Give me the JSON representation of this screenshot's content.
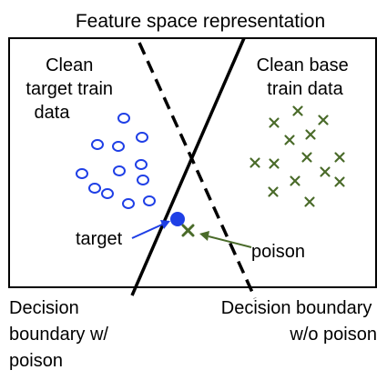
{
  "title": "Feature space representation",
  "labels": {
    "clean_target": [
      "Clean",
      "target train",
      "data"
    ],
    "clean_base": [
      "Clean base",
      "train data"
    ],
    "target": "target",
    "poison": "poison",
    "boundary_with_poison": [
      "Decision",
      "boundary w/",
      "poison"
    ],
    "boundary_without_poison": [
      "Decision boundary",
      "w/o poison"
    ]
  },
  "colors": {
    "target_class": "#1f3fe6",
    "base_class": "#4a6b2a",
    "line": "#000000",
    "text": "#000000"
  },
  "markers": {
    "target_class": "open-ellipse",
    "base_class": "x-cross",
    "target_point": "filled-circle",
    "poison_point": "x-cross"
  },
  "counts": {
    "target_class_points": 12,
    "base_class_points": 14
  }
}
